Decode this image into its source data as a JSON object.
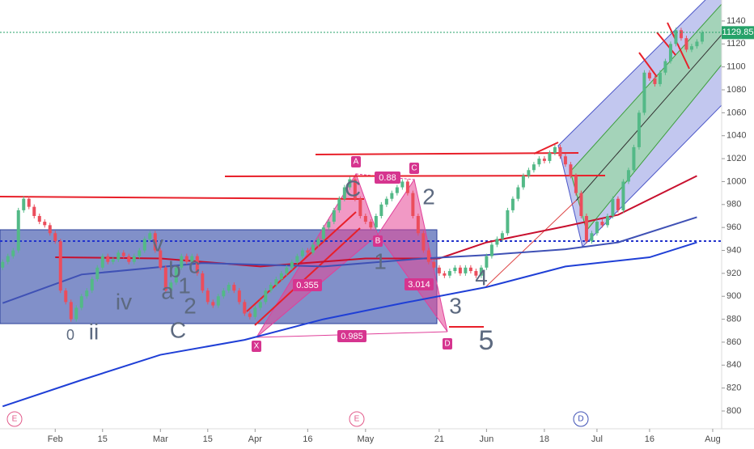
{
  "chart_data": {
    "type": "candlestick",
    "up_color": "#53b987",
    "down_color": "#eb4d5c",
    "xlim": [
      -0.5,
      136.7
    ],
    "xticks": [
      {
        "value": 10,
        "label": "Feb"
      },
      {
        "value": 19,
        "label": "15"
      },
      {
        "value": 30,
        "label": "Mar"
      },
      {
        "value": 39,
        "label": "15"
      },
      {
        "value": 48,
        "label": "Apr"
      },
      {
        "value": 58,
        "label": "16"
      },
      {
        "value": 69,
        "label": "May"
      },
      {
        "value": 83,
        "label": "21"
      },
      {
        "value": 92,
        "label": "Jun"
      },
      {
        "value": 103,
        "label": "18"
      },
      {
        "value": 113,
        "label": "Jul"
      },
      {
        "value": 123,
        "label": "16"
      },
      {
        "value": 135,
        "label": "Aug"
      }
    ],
    "ylim": [
      784.5,
      1158.3
    ],
    "yticks": [
      800,
      820,
      840,
      860,
      880,
      900,
      920,
      940,
      960,
      980,
      1000,
      1020,
      1040,
      1060,
      1080,
      1100,
      1120,
      1140
    ],
    "last_price": 1129.85,
    "candles": [
      [
        925,
        930
      ],
      [
        930,
        935
      ],
      [
        935,
        940
      ],
      [
        940,
        975
      ],
      [
        975,
        985
      ],
      [
        985,
        978
      ],
      [
        978,
        970
      ],
      [
        970,
        965
      ],
      [
        965,
        962
      ],
      [
        962,
        955
      ],
      [
        955,
        948
      ],
      [
        948,
        905
      ],
      [
        905,
        895
      ],
      [
        895,
        880
      ],
      [
        880,
        890
      ],
      [
        890,
        900
      ],
      [
        900,
        905
      ],
      [
        905,
        915
      ],
      [
        915,
        925
      ],
      [
        925,
        935
      ],
      [
        935,
        930
      ],
      [
        930,
        932
      ],
      [
        932,
        938
      ],
      [
        938,
        935
      ],
      [
        935,
        930
      ],
      [
        930,
        935
      ],
      [
        935,
        940
      ],
      [
        940,
        950
      ],
      [
        950,
        955
      ],
      [
        955,
        940
      ],
      [
        940,
        925
      ],
      [
        925,
        905
      ],
      [
        905,
        912
      ],
      [
        912,
        925
      ],
      [
        925,
        935
      ],
      [
        935,
        930
      ],
      [
        930,
        935
      ],
      [
        935,
        920
      ],
      [
        920,
        905
      ],
      [
        905,
        895
      ],
      [
        895,
        892
      ],
      [
        892,
        900
      ],
      [
        900,
        905
      ],
      [
        905,
        910
      ],
      [
        910,
        905
      ],
      [
        905,
        895
      ],
      [
        895,
        885
      ],
      [
        885,
        882
      ],
      [
        882,
        890
      ],
      [
        890,
        895
      ],
      [
        895,
        905
      ],
      [
        905,
        910
      ],
      [
        910,
        915
      ],
      [
        915,
        920
      ],
      [
        920,
        925
      ],
      [
        925,
        930
      ],
      [
        930,
        935
      ],
      [
        935,
        940
      ],
      [
        940,
        938
      ],
      [
        938,
        945
      ],
      [
        945,
        950
      ],
      [
        950,
        960
      ],
      [
        960,
        965
      ],
      [
        965,
        975
      ],
      [
        975,
        985
      ],
      [
        985,
        995
      ],
      [
        995,
        1002
      ],
      [
        1002,
        985
      ],
      [
        985,
        970
      ],
      [
        970,
        965
      ],
      [
        965,
        960
      ],
      [
        960,
        970
      ],
      [
        970,
        980
      ],
      [
        980,
        985
      ],
      [
        985,
        990
      ],
      [
        990,
        995
      ],
      [
        995,
        1000
      ],
      [
        1000,
        990
      ],
      [
        990,
        970
      ],
      [
        970,
        955
      ],
      [
        955,
        940
      ],
      [
        940,
        930
      ],
      [
        930,
        925
      ],
      [
        925,
        920
      ],
      [
        920,
        918
      ],
      [
        918,
        922
      ],
      [
        922,
        925
      ],
      [
        925,
        920
      ],
      [
        920,
        925
      ],
      [
        925,
        922
      ],
      [
        922,
        918
      ],
      [
        918,
        925
      ],
      [
        925,
        935
      ],
      [
        935,
        945
      ],
      [
        945,
        950
      ],
      [
        950,
        955
      ],
      [
        955,
        975
      ],
      [
        975,
        985
      ],
      [
        985,
        995
      ],
      [
        995,
        1005
      ],
      [
        1005,
        1010
      ],
      [
        1010,
        1015
      ],
      [
        1015,
        1020
      ],
      [
        1020,
        1018
      ],
      [
        1018,
        1025
      ],
      [
        1025,
        1030
      ],
      [
        1030,
        1022
      ],
      [
        1022,
        1015
      ],
      [
        1015,
        1005
      ],
      [
        1005,
        990
      ],
      [
        990,
        970
      ],
      [
        970,
        948
      ],
      [
        948,
        955
      ],
      [
        955,
        965
      ],
      [
        965,
        962
      ],
      [
        962,
        970
      ],
      [
        970,
        985
      ],
      [
        985,
        975
      ],
      [
        975,
        1000
      ],
      [
        1000,
        1010
      ],
      [
        1010,
        1030
      ],
      [
        1030,
        1060
      ],
      [
        1060,
        1095
      ],
      [
        1095,
        1090
      ],
      [
        1090,
        1085
      ],
      [
        1085,
        1095
      ],
      [
        1095,
        1105
      ],
      [
        1105,
        1120
      ],
      [
        1120,
        1132
      ],
      [
        1132,
        1125
      ],
      [
        1125,
        1115
      ],
      [
        1115,
        1118
      ],
      [
        1118,
        1122
      ],
      [
        1122,
        1129.85
      ]
    ],
    "series": [
      {
        "color": "#c8102e",
        "x": [
          10,
          30,
          49,
          69,
          83,
          92,
          107,
          117,
          132
        ],
        "values": [
          934,
          933,
          926,
          933,
          933,
          947,
          961,
          971,
          1005
        ]
      },
      {
        "color": "#3f51b5",
        "x": [
          0,
          15,
          38,
          61,
          80,
          92,
          107,
          117,
          132
        ],
        "values": [
          894,
          919,
          929,
          926,
          933,
          936,
          941,
          947,
          969
        ]
      },
      {
        "color": "#1f3fd6",
        "x": [
          0,
          15,
          30,
          46,
          61,
          76,
          92,
          107,
          123,
          132
        ],
        "values": [
          804,
          827,
          849,
          862,
          880,
          894,
          908,
          926,
          934,
          947
        ]
      }
    ]
  },
  "annotations": {
    "points": [
      "X",
      "A",
      "B",
      "C",
      "D"
    ],
    "ratios": [
      "0.88",
      "0.355",
      "3.014",
      "0.985"
    ],
    "waves": [
      "0",
      "ii",
      "iv",
      "C",
      "a",
      "b",
      "c",
      "1",
      "2",
      "v",
      "C",
      "1",
      "2",
      "3",
      "4",
      "5"
    ],
    "events": [
      "E",
      "E",
      "D"
    ]
  }
}
